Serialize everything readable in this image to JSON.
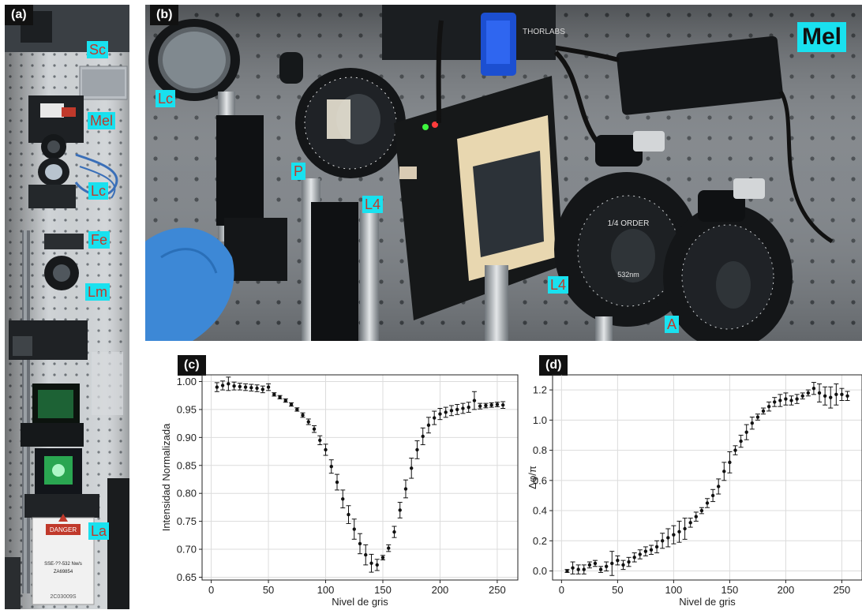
{
  "panels": {
    "a": {
      "tag": "(a)",
      "labels": {
        "sc": "Sc",
        "mel": "Mel",
        "lc": "Lc",
        "fe": "Fe",
        "lm": "Lm",
        "la": "La"
      },
      "warning_sticker": "DANGER",
      "device_text": [
        "SSE-??-532 Nw/s",
        "ZA69854",
        "2C03009S"
      ]
    },
    "b": {
      "tag": "(b)",
      "labels": {
        "mel": "Mel",
        "lc": "Lc",
        "p": "P",
        "l4_top": "L4",
        "l4_bottom": "L4",
        "a": "A"
      },
      "optic_text": [
        "THORLABS",
        "1/4 ORDER",
        "532nm"
      ]
    },
    "c": {
      "tag": "(c)"
    },
    "d": {
      "tag": "(d)"
    }
  },
  "colors": {
    "label_bg": "#19e1ef",
    "label_text": "#c0392b",
    "tag_bg": "#111111"
  },
  "chart_data": [
    {
      "type": "scatter",
      "error_bars": true,
      "title": "",
      "xlabel": "Nivel de gris",
      "ylabel": "Intensidad Normalizada",
      "xlim": [
        -8,
        268
      ],
      "ylim": [
        0.645,
        1.012
      ],
      "xticks": [
        0,
        50,
        100,
        150,
        200,
        250
      ],
      "yticks": [
        0.65,
        0.7,
        0.75,
        0.8,
        0.85,
        0.9,
        0.95,
        1.0
      ],
      "ytick_labels": [
        "0.65",
        "0.70",
        "0.75",
        "0.80",
        "0.85",
        "0.90",
        "0.95",
        "1.00"
      ],
      "grid": true,
      "x": [
        5,
        10,
        15,
        20,
        25,
        30,
        35,
        40,
        45,
        50,
        55,
        60,
        65,
        70,
        75,
        80,
        85,
        90,
        95,
        100,
        105,
        110,
        115,
        120,
        125,
        130,
        135,
        140,
        145,
        150,
        155,
        160,
        165,
        170,
        175,
        180,
        185,
        190,
        195,
        200,
        205,
        210,
        215,
        220,
        225,
        230,
        235,
        240,
        245,
        250,
        255
      ],
      "y": [
        0.99,
        0.993,
        0.996,
        0.992,
        0.991,
        0.99,
        0.989,
        0.988,
        0.986,
        0.99,
        0.977,
        0.972,
        0.966,
        0.959,
        0.95,
        0.94,
        0.928,
        0.915,
        0.895,
        0.878,
        0.848,
        0.82,
        0.79,
        0.762,
        0.736,
        0.71,
        0.69,
        0.675,
        0.672,
        0.685,
        0.702,
        0.731,
        0.77,
        0.808,
        0.845,
        0.878,
        0.902,
        0.922,
        0.935,
        0.942,
        0.945,
        0.948,
        0.95,
        0.952,
        0.954,
        0.966,
        0.956,
        0.957,
        0.958,
        0.959,
        0.958
      ],
      "yerr": [
        0.008,
        0.008,
        0.012,
        0.007,
        0.006,
        0.006,
        0.006,
        0.006,
        0.006,
        0.006,
        0.003,
        0.003,
        0.003,
        0.003,
        0.003,
        0.004,
        0.005,
        0.006,
        0.008,
        0.01,
        0.012,
        0.014,
        0.016,
        0.016,
        0.018,
        0.018,
        0.018,
        0.016,
        0.01,
        0.004,
        0.006,
        0.01,
        0.014,
        0.016,
        0.018,
        0.016,
        0.015,
        0.014,
        0.012,
        0.01,
        0.009,
        0.009,
        0.009,
        0.009,
        0.009,
        0.016,
        0.005,
        0.004,
        0.004,
        0.004,
        0.006
      ]
    },
    {
      "type": "scatter",
      "error_bars": true,
      "title": "",
      "xlabel": "Nivel de gris",
      "ylabel": "Δφ/π",
      "xlim": [
        -8,
        268
      ],
      "ylim": [
        -0.06,
        1.3
      ],
      "xticks": [
        0,
        50,
        100,
        150,
        200,
        250
      ],
      "yticks": [
        0.0,
        0.2,
        0.4,
        0.6,
        0.8,
        1.0,
        1.2
      ],
      "ytick_labels": [
        "0.0",
        "0.2",
        "0.4",
        "0.6",
        "0.8",
        "1.0",
        "1.2"
      ],
      "grid": true,
      "x": [
        5,
        10,
        15,
        20,
        25,
        30,
        35,
        40,
        45,
        50,
        55,
        60,
        65,
        70,
        75,
        80,
        85,
        90,
        95,
        100,
        105,
        110,
        115,
        120,
        125,
        130,
        135,
        140,
        145,
        150,
        155,
        160,
        165,
        170,
        175,
        180,
        185,
        190,
        195,
        200,
        205,
        210,
        215,
        220,
        225,
        230,
        235,
        240,
        245,
        250,
        255
      ],
      "y": [
        0.0,
        0.02,
        0.01,
        0.01,
        0.04,
        0.05,
        0.01,
        0.03,
        0.05,
        0.07,
        0.04,
        0.06,
        0.09,
        0.11,
        0.13,
        0.14,
        0.16,
        0.2,
        0.22,
        0.24,
        0.26,
        0.28,
        0.32,
        0.36,
        0.4,
        0.45,
        0.5,
        0.56,
        0.66,
        0.72,
        0.8,
        0.86,
        0.92,
        0.98,
        1.02,
        1.06,
        1.09,
        1.12,
        1.13,
        1.14,
        1.13,
        1.14,
        1.16,
        1.18,
        1.21,
        1.18,
        1.16,
        1.15,
        1.17,
        1.17,
        1.16
      ],
      "yerr": [
        0.01,
        0.04,
        0.03,
        0.03,
        0.02,
        0.02,
        0.02,
        0.03,
        0.08,
        0.03,
        0.03,
        0.03,
        0.03,
        0.03,
        0.03,
        0.03,
        0.04,
        0.05,
        0.06,
        0.06,
        0.07,
        0.07,
        0.03,
        0.03,
        0.02,
        0.03,
        0.04,
        0.05,
        0.06,
        0.07,
        0.03,
        0.04,
        0.05,
        0.04,
        0.02,
        0.02,
        0.03,
        0.03,
        0.04,
        0.04,
        0.03,
        0.03,
        0.02,
        0.02,
        0.04,
        0.06,
        0.06,
        0.07,
        0.07,
        0.04,
        0.03
      ]
    }
  ]
}
